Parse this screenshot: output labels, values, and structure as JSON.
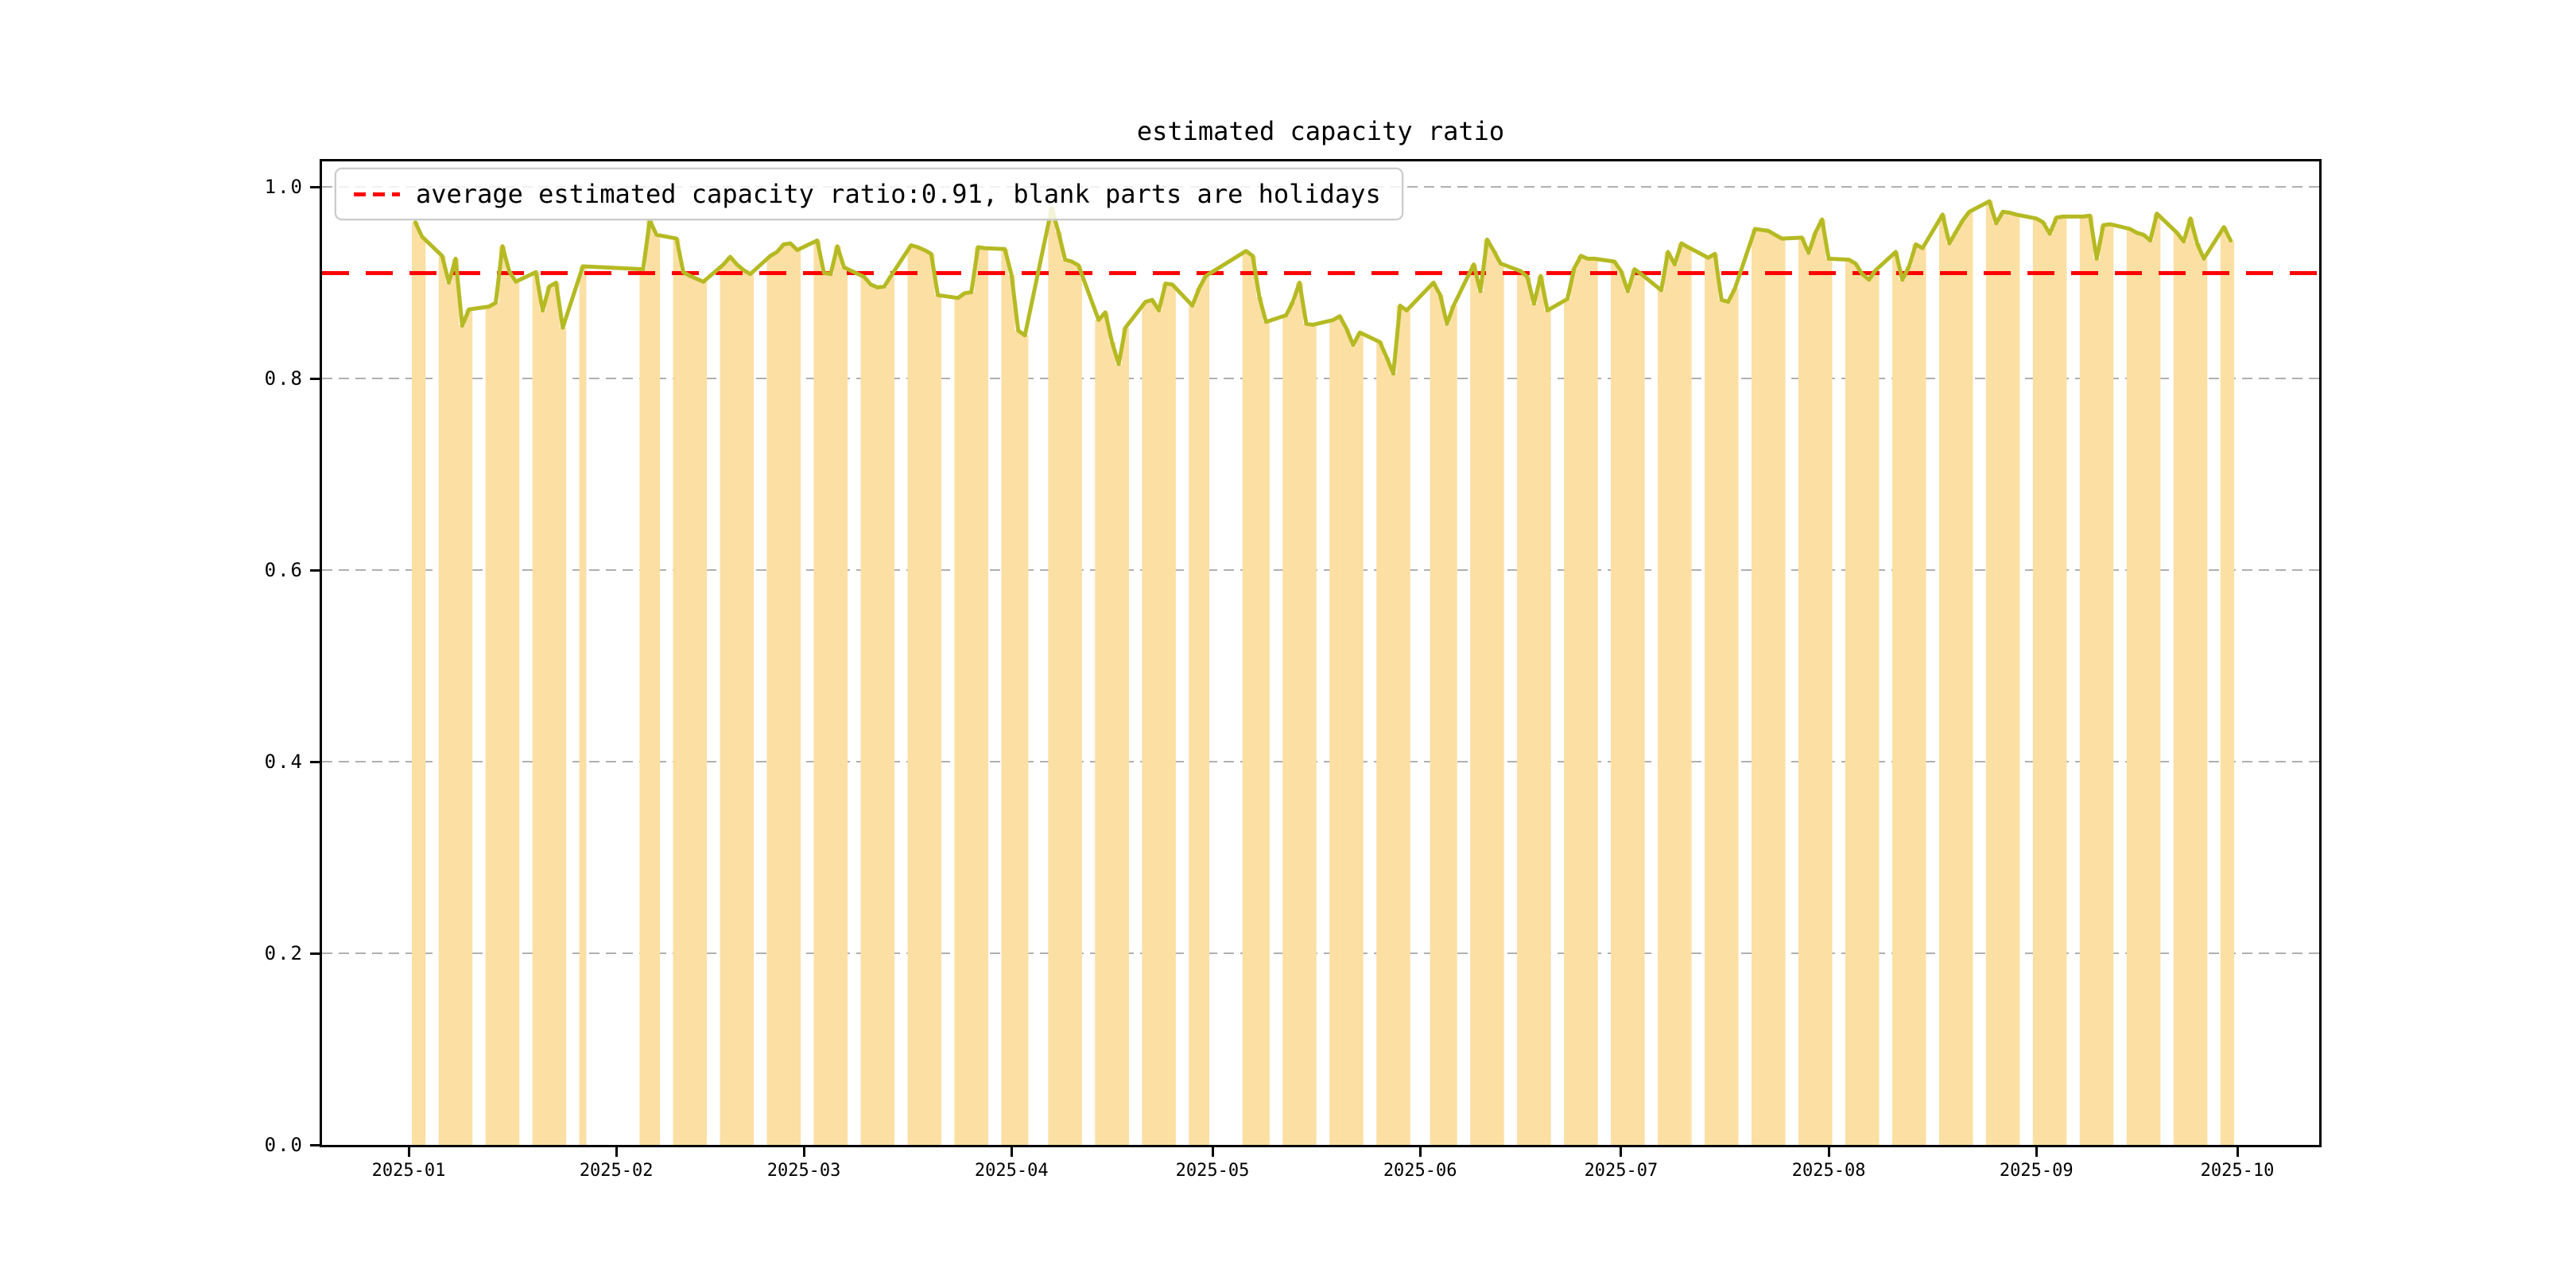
{
  "title": "estimated capacity ratio",
  "legend": {
    "label": "average estimated capacity ratio:0.91, blank parts are holidays"
  },
  "chart_data": {
    "type": "line",
    "title": "estimated capacity ratio",
    "year": 2025,
    "average": 0.91,
    "legend_entry": "average estimated capacity ratio:0.91, blank parts are holidays",
    "ylim": [
      0.0,
      1.0265
    ],
    "yticks": [
      "0.0",
      "0.2",
      "0.4",
      "0.6",
      "0.8",
      "1.0"
    ],
    "ytick_values": [
      0.0,
      0.2,
      0.4,
      0.6,
      0.8,
      1.0
    ],
    "xticks": [
      "2025-01",
      "2025-02",
      "2025-03",
      "2025-04",
      "2025-05",
      "2025-06",
      "2025-07",
      "2025-08",
      "2025-09",
      "2025-10"
    ],
    "grid": "horizontal-dashed",
    "legend_position": "upper-left",
    "line_color": "#b5ba23",
    "bar_color": "#fbdfa3",
    "average_line_color": "#ff0000",
    "grid_color": "#b0b0b0",
    "dates": [
      "01-02",
      "01-03",
      "01-06",
      "01-07",
      "01-08",
      "01-09",
      "01-10",
      "01-13",
      "01-14",
      "01-15",
      "01-16",
      "01-17",
      "01-20",
      "01-21",
      "01-22",
      "01-23",
      "01-24",
      "01-27",
      "02-05",
      "02-06",
      "02-07",
      "02-10",
      "02-11",
      "02-12",
      "02-13",
      "02-14",
      "02-17",
      "02-18",
      "02-19",
      "02-20",
      "02-21",
      "02-24",
      "02-25",
      "02-26",
      "02-27",
      "02-28",
      "03-03",
      "03-04",
      "03-05",
      "03-06",
      "03-07",
      "03-10",
      "03-11",
      "03-12",
      "03-13",
      "03-14",
      "03-17",
      "03-18",
      "03-19",
      "03-20",
      "03-21",
      "03-24",
      "03-25",
      "03-26",
      "03-27",
      "03-28",
      "03-31",
      "04-01",
      "04-02",
      "04-03",
      "04-07",
      "04-08",
      "04-09",
      "04-10",
      "04-11",
      "04-14",
      "04-15",
      "04-16",
      "04-17",
      "04-18",
      "04-21",
      "04-22",
      "04-23",
      "04-24",
      "04-25",
      "04-28",
      "04-29",
      "04-30",
      "05-06",
      "05-07",
      "05-08",
      "05-09",
      "05-12",
      "05-13",
      "05-14",
      "05-15",
      "05-16",
      "05-19",
      "05-20",
      "05-21",
      "05-22",
      "05-23",
      "05-26",
      "05-27",
      "05-28",
      "05-29",
      "05-30",
      "06-03",
      "06-04",
      "06-05",
      "06-06",
      "06-09",
      "06-10",
      "06-11",
      "06-12",
      "06-13",
      "06-16",
      "06-17",
      "06-18",
      "06-19",
      "06-20",
      "06-23",
      "06-24",
      "06-25",
      "06-26",
      "06-27",
      "06-30",
      "07-01",
      "07-02",
      "07-03",
      "07-04",
      "07-07",
      "07-08",
      "07-09",
      "07-10",
      "07-11",
      "07-14",
      "07-15",
      "07-16",
      "07-17",
      "07-18",
      "07-21",
      "07-22",
      "07-23",
      "07-24",
      "07-25",
      "07-28",
      "07-29",
      "07-30",
      "07-31",
      "08-01",
      "08-04",
      "08-05",
      "08-06",
      "08-07",
      "08-08",
      "08-11",
      "08-12",
      "08-13",
      "08-14",
      "08-15",
      "08-18",
      "08-19",
      "08-20",
      "08-21",
      "08-22",
      "08-25",
      "08-26",
      "08-27",
      "08-28",
      "08-29",
      "09-01",
      "09-02",
      "09-03",
      "09-04",
      "09-05",
      "09-08",
      "09-09",
      "09-10",
      "09-11",
      "09-12",
      "09-15",
      "09-16",
      "09-17",
      "09-18",
      "09-19",
      "09-22",
      "09-23",
      "09-24",
      "09-25",
      "09-26",
      "09-29",
      "09-30"
    ],
    "values": [
      0.963,
      0.948,
      0.928,
      0.9,
      0.925,
      0.855,
      0.872,
      0.875,
      0.879,
      0.938,
      0.912,
      0.901,
      0.911,
      0.871,
      0.896,
      0.9,
      0.853,
      0.917,
      0.914,
      0.965,
      0.95,
      0.946,
      0.911,
      0.907,
      0.904,
      0.901,
      0.919,
      0.927,
      0.919,
      0.913,
      0.909,
      0.928,
      0.932,
      0.94,
      0.941,
      0.934,
      0.944,
      0.91,
      0.909,
      0.938,
      0.916,
      0.906,
      0.898,
      0.895,
      0.896,
      0.907,
      0.939,
      0.937,
      0.934,
      0.93,
      0.887,
      0.884,
      0.889,
      0.89,
      0.937,
      0.936,
      0.935,
      0.908,
      0.85,
      0.845,
      0.978,
      0.953,
      0.924,
      0.922,
      0.918,
      0.861,
      0.869,
      0.838,
      0.815,
      0.853,
      0.88,
      0.882,
      0.871,
      0.899,
      0.898,
      0.876,
      0.894,
      0.907,
      0.933,
      0.928,
      0.885,
      0.859,
      0.866,
      0.88,
      0.9,
      0.857,
      0.856,
      0.861,
      0.865,
      0.852,
      0.835,
      0.848,
      0.838,
      0.822,
      0.805,
      0.876,
      0.871,
      0.9,
      0.887,
      0.857,
      0.876,
      0.919,
      0.891,
      0.945,
      0.933,
      0.92,
      0.912,
      0.906,
      0.878,
      0.907,
      0.871,
      0.883,
      0.915,
      0.928,
      0.925,
      0.925,
      0.922,
      0.912,
      0.891,
      0.914,
      0.909,
      0.892,
      0.932,
      0.919,
      0.941,
      0.937,
      0.926,
      0.93,
      0.882,
      0.88,
      0.894,
      0.956,
      0.955,
      0.954,
      0.95,
      0.946,
      0.947,
      0.931,
      0.952,
      0.966,
      0.925,
      0.924,
      0.92,
      0.909,
      0.903,
      0.913,
      0.932,
      0.903,
      0.917,
      0.94,
      0.936,
      0.971,
      0.941,
      0.953,
      0.965,
      0.974,
      0.985,
      0.962,
      0.974,
      0.973,
      0.971,
      0.967,
      0.963,
      0.951,
      0.968,
      0.969,
      0.969,
      0.97,
      0.925,
      0.96,
      0.961,
      0.956,
      0.952,
      0.95,
      0.944,
      0.972,
      0.952,
      0.943,
      0.967,
      0.941,
      0.925,
      0.958,
      0.944
    ]
  }
}
